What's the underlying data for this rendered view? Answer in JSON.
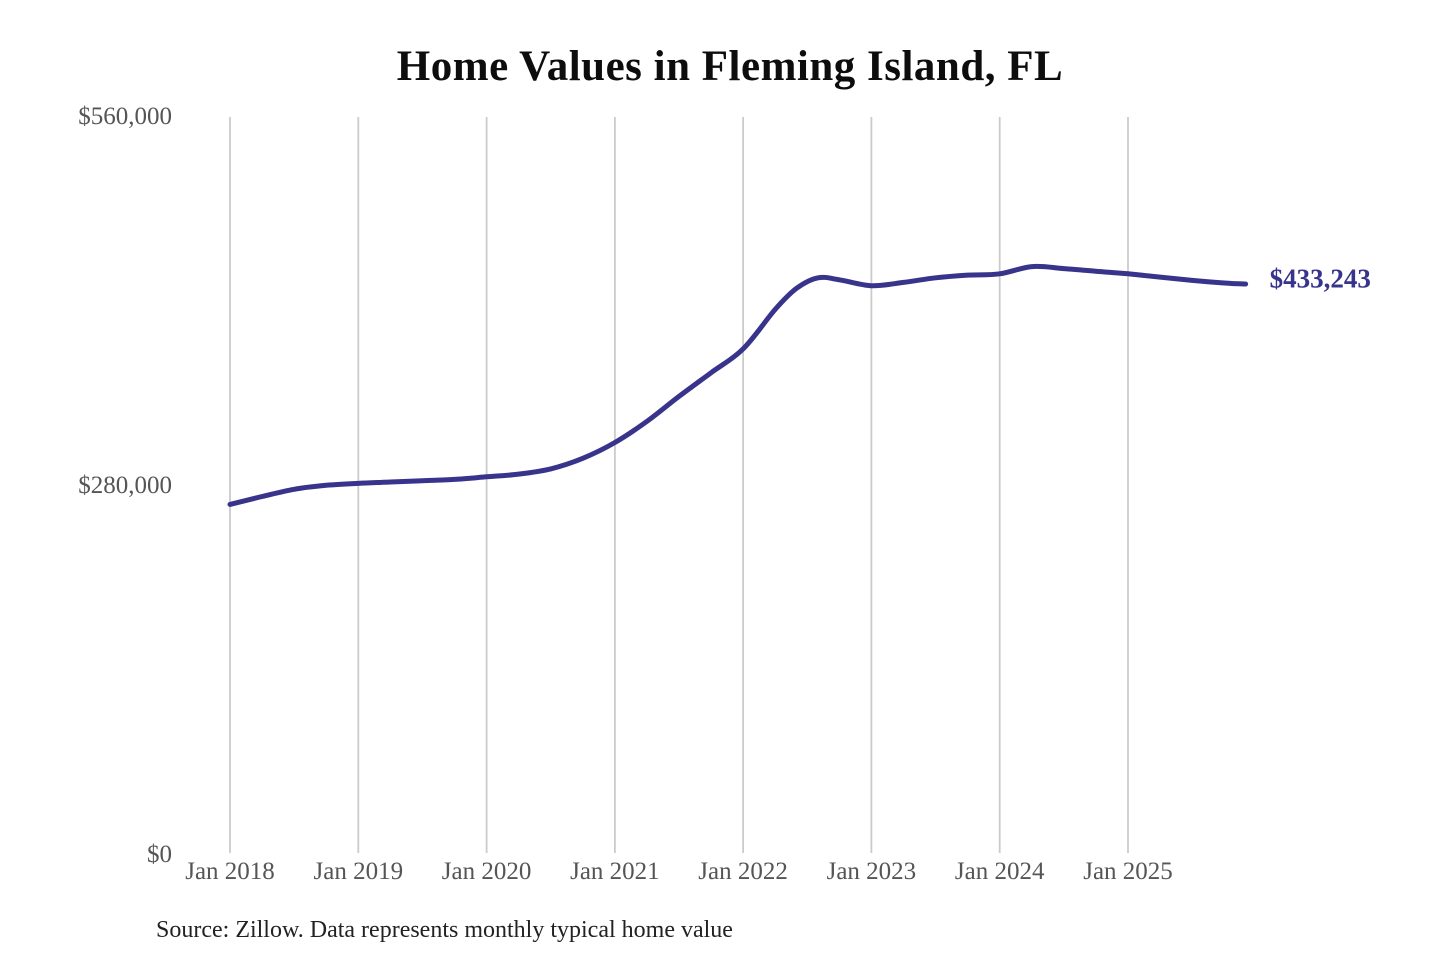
{
  "chart_data": {
    "type": "line",
    "title": "Home Values in Fleming Island, FL",
    "source_note": "Source: Zillow. Data represents monthly typical home value",
    "end_label": "$433,243",
    "end_value": 433243,
    "xlabel": "",
    "ylabel": "",
    "ylim": [
      0,
      560000
    ],
    "grid": "vertical-only",
    "legend_position": "none",
    "x_ticks": [
      {
        "label": "Jan 2018",
        "month": "2018-01"
      },
      {
        "label": "Jan 2019",
        "month": "2019-01"
      },
      {
        "label": "Jan 2020",
        "month": "2020-01"
      },
      {
        "label": "Jan 2021",
        "month": "2021-01"
      },
      {
        "label": "Jan 2022",
        "month": "2022-01"
      },
      {
        "label": "Jan 2023",
        "month": "2023-01"
      },
      {
        "label": "Jan 2024",
        "month": "2024-01"
      },
      {
        "label": "Jan 2025",
        "month": "2025-01"
      }
    ],
    "y_ticks": [
      {
        "label": "$0",
        "value": 0
      },
      {
        "label": "$280,000",
        "value": 280000
      },
      {
        "label": "$560,000",
        "value": 560000
      }
    ],
    "series": [
      {
        "name": "Monthly typical home value",
        "points": [
          [
            "2018-01",
            266000
          ],
          [
            "2018-04",
            272000
          ],
          [
            "2018-07",
            277500
          ],
          [
            "2018-10",
            280500
          ],
          [
            "2019-01",
            282000
          ],
          [
            "2019-04",
            283000
          ],
          [
            "2019-07",
            284000
          ],
          [
            "2019-10",
            285000
          ],
          [
            "2020-01",
            287000
          ],
          [
            "2020-04",
            289000
          ],
          [
            "2020-07",
            293000
          ],
          [
            "2020-10",
            301000
          ],
          [
            "2021-01",
            313000
          ],
          [
            "2021-04",
            329000
          ],
          [
            "2021-07",
            348000
          ],
          [
            "2021-10",
            366000
          ],
          [
            "2022-01",
            384000
          ],
          [
            "2022-04",
            414000
          ],
          [
            "2022-06",
            430000
          ],
          [
            "2022-08",
            438000
          ],
          [
            "2022-10",
            436500
          ],
          [
            "2023-01",
            432000
          ],
          [
            "2023-04",
            434500
          ],
          [
            "2023-07",
            438000
          ],
          [
            "2023-10",
            440000
          ],
          [
            "2024-01",
            441000
          ],
          [
            "2024-04",
            446500
          ],
          [
            "2024-07",
            445000
          ],
          [
            "2024-10",
            443000
          ],
          [
            "2025-01",
            441000
          ],
          [
            "2025-04",
            438500
          ],
          [
            "2025-07",
            436000
          ],
          [
            "2025-10",
            434000
          ],
          [
            "2025-12",
            433243
          ]
        ]
      }
    ],
    "colors": {
      "line": "#38348C",
      "gridline": "#CBCBCB",
      "tick_text": "#555555",
      "title_text": "#0D0D0D",
      "source_text": "#222222",
      "end_label_text": "#38348C",
      "background": "#FFFFFF"
    }
  }
}
